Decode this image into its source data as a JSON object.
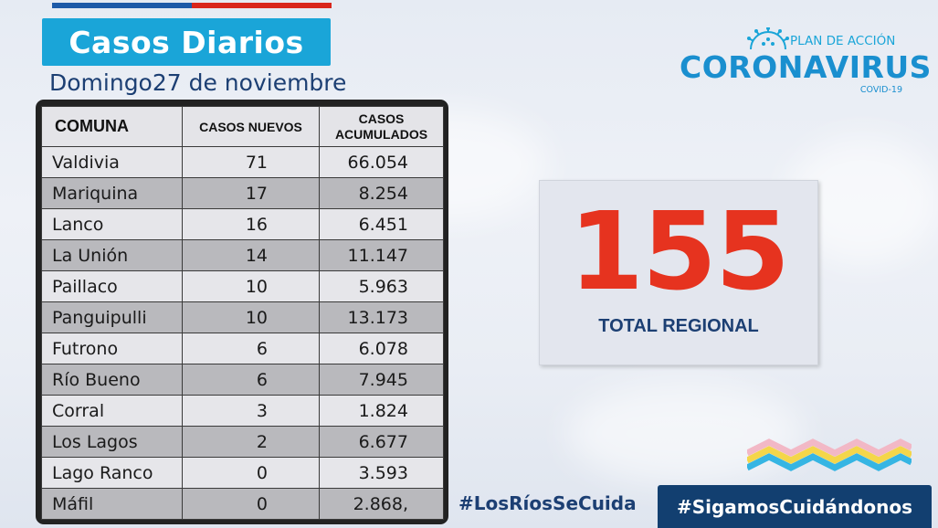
{
  "header": {
    "title": "Casos Diarios",
    "date": "Domingo27 de noviembre"
  },
  "logo": {
    "subtitle": "PLAN DE ACCIÓN",
    "main": "CORONAVIRUS",
    "tag": "COVID-19",
    "icon": "virus-icon"
  },
  "table": {
    "headers": {
      "comuna": "COMUNA",
      "nuevos": "CASOS NUEVOS",
      "acumulados_1": "CASOS",
      "acumulados_2": "ACUMULADOS"
    },
    "rows": [
      {
        "comuna": "Valdivia",
        "nuevos": "71",
        "acumulados": "66.054"
      },
      {
        "comuna": "Mariquina",
        "nuevos": "17",
        "acumulados": "8.254"
      },
      {
        "comuna": "Lanco",
        "nuevos": "16",
        "acumulados": "6.451"
      },
      {
        "comuna": "La Unión",
        "nuevos": "14",
        "acumulados": "11.147"
      },
      {
        "comuna": "Paillaco",
        "nuevos": "10",
        "acumulados": "5.963"
      },
      {
        "comuna": "Panguipulli",
        "nuevos": "10",
        "acumulados": "13.173"
      },
      {
        "comuna": "Futrono",
        "nuevos": "6",
        "acumulados": "6.078"
      },
      {
        "comuna": "Río Bueno",
        "nuevos": "6",
        "acumulados": "7.945"
      },
      {
        "comuna": "Corral",
        "nuevos": "3",
        "acumulados": "1.824"
      },
      {
        "comuna": "Los Lagos",
        "nuevos": "2",
        "acumulados": "6.677"
      },
      {
        "comuna": "Lago Ranco",
        "nuevos": "0",
        "acumulados": "3.593"
      },
      {
        "comuna": "Máfil",
        "nuevos": "0",
        "acumulados": "2.868,"
      }
    ]
  },
  "total": {
    "number": "155",
    "label": "TOTAL REGIONAL"
  },
  "hashtags": {
    "left": "#LosRíosSeCuida",
    "right": "#SigamosCuidándonos"
  },
  "colors": {
    "title_bg": "#1aa5d8",
    "navy": "#1c3f73",
    "total_red": "#e6331f",
    "hashtag_bg": "#123f70"
  }
}
